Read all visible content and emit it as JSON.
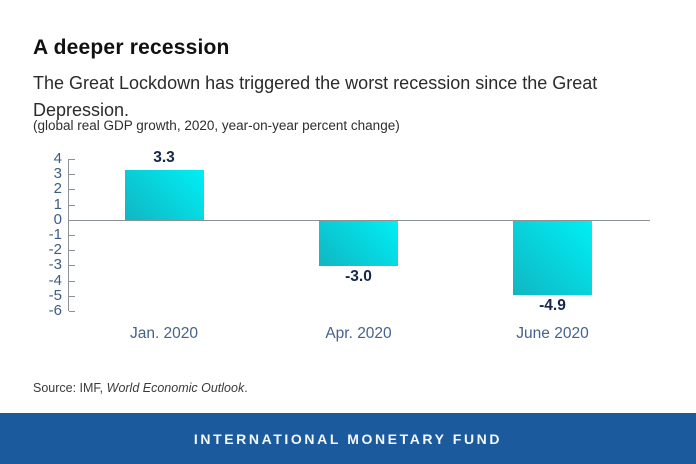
{
  "header": {
    "title": "A deeper recession",
    "subtitle": "The Great Lockdown has triggered the worst recession since the Great Depression.",
    "caption": "(global real GDP growth, 2020, year-on-year percent change)"
  },
  "chart_data": {
    "type": "bar",
    "title": "A deeper recession",
    "subtitle": "The Great Lockdown has triggered the worst recession since the Great Depression.",
    "caption": "(global real GDP growth, 2020, year-on-year percent change)",
    "categories": [
      "Jan. 2020",
      "Apr. 2020",
      "June 2020"
    ],
    "values": [
      3.3,
      -3.0,
      -4.9
    ],
    "value_labels": [
      "3.3",
      "-3.0",
      "-4.9"
    ],
    "xlabel": "",
    "ylabel": "",
    "ylim": [
      -6,
      4
    ],
    "yticks": [
      4,
      3,
      2,
      1,
      0,
      -1,
      -2,
      -3,
      -4,
      -5,
      -6
    ],
    "grid": false,
    "legend": "none",
    "bar_gradient_start": "#10b6c2",
    "bar_gradient_end": "#00eff5"
  },
  "source": {
    "prefix": "Source: IMF, ",
    "publication": "World Economic Outlook",
    "suffix": "."
  },
  "footer": {
    "brand": "INTERNATIONAL MONETARY FUND",
    "background": "#1b5a9d"
  },
  "colors": {
    "axis_line": "#8d9298",
    "y_tick_label": "#3e5c85",
    "x_tick_label": "#456389",
    "value_label": "#15264e",
    "title_text": "#111111",
    "body_text": "#2b2b2b"
  }
}
